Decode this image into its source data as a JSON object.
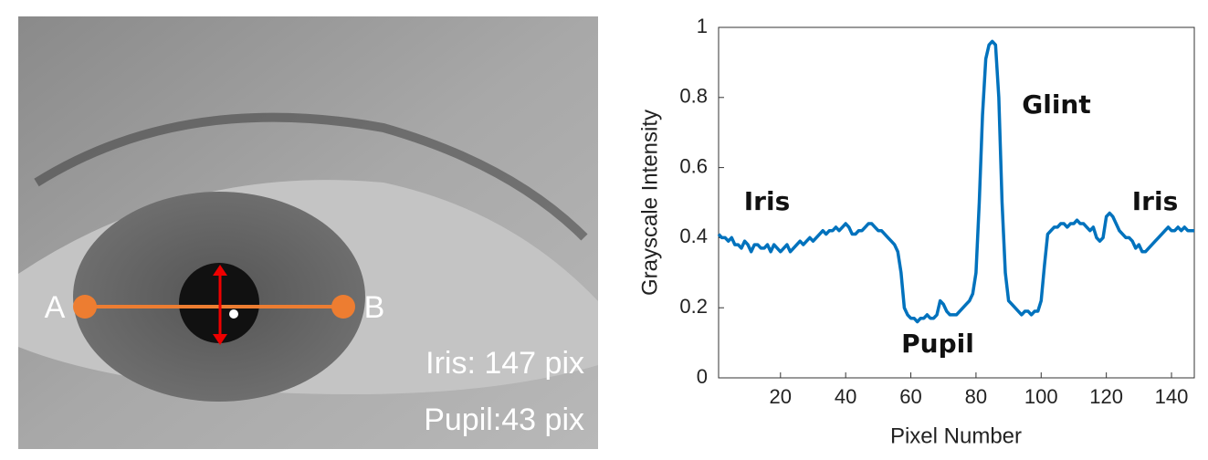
{
  "photo": {
    "point_labels": [
      "A",
      "B"
    ],
    "measurements": [
      "Iris: 147 pix",
      "Pupil:43 pix"
    ]
  },
  "chart_data": {
    "type": "line",
    "xlabel": "Pixel Number",
    "ylabel": "Grayscale Intensity",
    "annotations": [
      "Iris",
      "Glint",
      "Pupil",
      "Iris"
    ],
    "x": [
      1,
      2,
      3,
      4,
      5,
      6,
      7,
      8,
      9,
      10,
      11,
      12,
      13,
      14,
      15,
      16,
      17,
      18,
      19,
      20,
      21,
      22,
      23,
      24,
      25,
      26,
      27,
      28,
      29,
      30,
      31,
      32,
      33,
      34,
      35,
      36,
      37,
      38,
      39,
      40,
      41,
      42,
      43,
      44,
      45,
      46,
      47,
      48,
      49,
      50,
      51,
      52,
      53,
      54,
      55,
      56,
      57,
      58,
      59,
      60,
      61,
      62,
      63,
      64,
      65,
      66,
      67,
      68,
      69,
      70,
      71,
      72,
      73,
      74,
      75,
      76,
      77,
      78,
      79,
      80,
      81,
      82,
      83,
      84,
      85,
      86,
      87,
      88,
      89,
      90,
      91,
      92,
      93,
      94,
      95,
      96,
      97,
      98,
      99,
      100,
      101,
      102,
      103,
      104,
      105,
      106,
      107,
      108,
      109,
      110,
      111,
      112,
      113,
      114,
      115,
      116,
      117,
      118,
      119,
      120,
      121,
      122,
      123,
      124,
      125,
      126,
      127,
      128,
      129,
      130,
      131,
      132,
      133,
      134,
      135,
      136,
      137,
      138,
      139,
      140,
      141,
      142,
      143,
      144,
      145,
      146,
      147
    ],
    "series": [
      {
        "name": "Grayscale Intensity",
        "color": "#0072bd",
        "values": [
          0.41,
          0.4,
          0.4,
          0.39,
          0.4,
          0.38,
          0.38,
          0.37,
          0.39,
          0.38,
          0.36,
          0.38,
          0.38,
          0.37,
          0.37,
          0.38,
          0.36,
          0.38,
          0.37,
          0.36,
          0.37,
          0.38,
          0.36,
          0.37,
          0.38,
          0.39,
          0.38,
          0.39,
          0.4,
          0.39,
          0.4,
          0.41,
          0.42,
          0.41,
          0.42,
          0.42,
          0.43,
          0.42,
          0.43,
          0.44,
          0.43,
          0.41,
          0.41,
          0.42,
          0.42,
          0.43,
          0.44,
          0.44,
          0.43,
          0.42,
          0.42,
          0.41,
          0.4,
          0.39,
          0.38,
          0.36,
          0.3,
          0.2,
          0.18,
          0.17,
          0.17,
          0.16,
          0.17,
          0.17,
          0.18,
          0.17,
          0.17,
          0.18,
          0.22,
          0.21,
          0.19,
          0.18,
          0.18,
          0.18,
          0.19,
          0.2,
          0.21,
          0.22,
          0.24,
          0.3,
          0.5,
          0.75,
          0.91,
          0.95,
          0.96,
          0.95,
          0.8,
          0.5,
          0.3,
          0.22,
          0.21,
          0.2,
          0.19,
          0.18,
          0.19,
          0.19,
          0.18,
          0.19,
          0.19,
          0.22,
          0.32,
          0.41,
          0.42,
          0.43,
          0.43,
          0.44,
          0.44,
          0.43,
          0.44,
          0.44,
          0.45,
          0.44,
          0.44,
          0.43,
          0.42,
          0.43,
          0.4,
          0.39,
          0.4,
          0.46,
          0.47,
          0.46,
          0.44,
          0.42,
          0.41,
          0.4,
          0.4,
          0.39,
          0.37,
          0.38,
          0.36,
          0.36,
          0.37,
          0.38,
          0.39,
          0.4,
          0.41,
          0.42,
          0.43,
          0.42,
          0.42,
          0.43,
          0.42,
          0.43,
          0.42,
          0.42,
          0.42
        ]
      }
    ],
    "xlim": [
      1,
      147
    ],
    "xticks": [
      20,
      40,
      60,
      80,
      100,
      120,
      140
    ],
    "ylim": [
      0,
      1
    ],
    "yticks": [
      0,
      0.2,
      0.4,
      0.6,
      0.8,
      1
    ]
  }
}
